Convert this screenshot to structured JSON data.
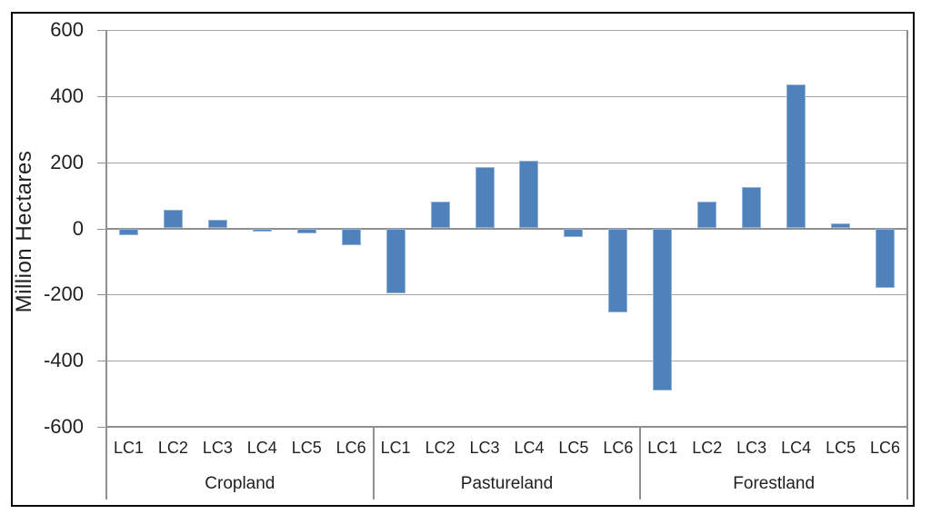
{
  "chart_data": {
    "type": "bar",
    "title": "",
    "xlabel": "",
    "ylabel": "Million Hectares",
    "ylim": [
      -600,
      600
    ],
    "ytick_step": 200,
    "yticks": [
      600,
      400,
      200,
      0,
      -200,
      -400,
      -600
    ],
    "grid": true,
    "legend": null,
    "bar_color": "#4F81BD",
    "bar_border_color": "#95b3d7",
    "gridline_color": "#a3a3a3",
    "axis_color": "#8f8f8f",
    "groups": [
      {
        "label": "Cropland",
        "categories": [
          "LC1",
          "LC2",
          "LC3",
          "LC4",
          "LC5",
          "LC6"
        ],
        "values": [
          -20,
          55,
          25,
          -10,
          -15,
          -50
        ]
      },
      {
        "label": "Pastureland",
        "categories": [
          "LC1",
          "LC2",
          "LC3",
          "LC4",
          "LC5",
          "LC6"
        ],
        "values": [
          -195,
          80,
          185,
          205,
          -25,
          -255
        ]
      },
      {
        "label": "Forestland",
        "categories": [
          "LC1",
          "LC2",
          "LC3",
          "LC4",
          "LC5",
          "LC6"
        ],
        "values": [
          -490,
          80,
          125,
          435,
          15,
          -180
        ]
      }
    ]
  }
}
